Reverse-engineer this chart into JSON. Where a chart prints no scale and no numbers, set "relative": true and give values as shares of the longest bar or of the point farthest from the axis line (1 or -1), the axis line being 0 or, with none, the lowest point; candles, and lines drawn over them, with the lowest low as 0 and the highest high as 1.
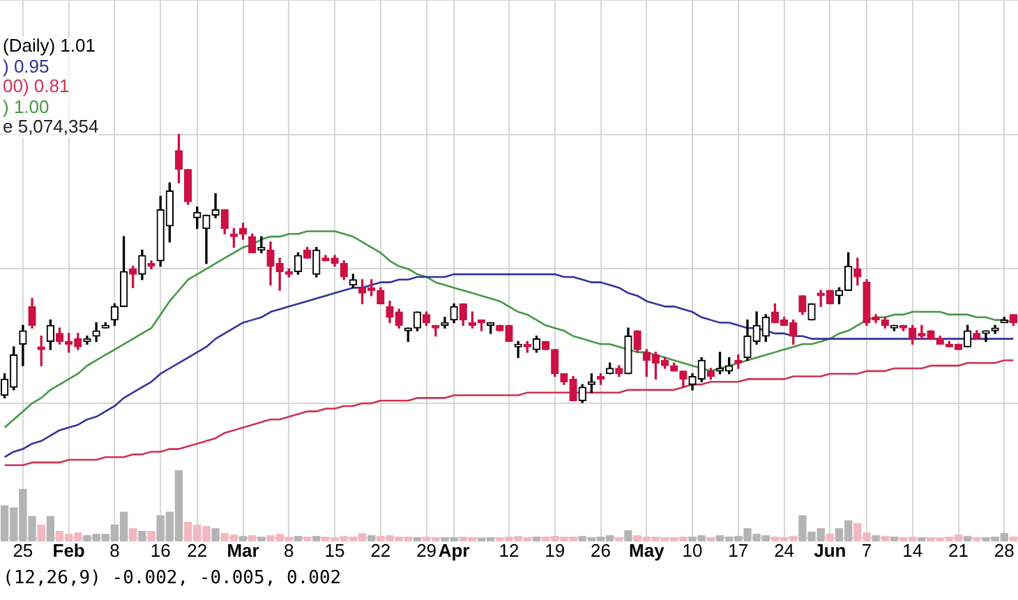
{
  "chart_data": [
    {
      "type": "candlestick",
      "title": "(Daily) 1.01",
      "relative": true,
      "grid": true,
      "legend": "top left",
      "categories": [
        null,
        null,
        "25",
        null,
        null,
        null,
        null,
        "Feb",
        null,
        null,
        null,
        null,
        "8",
        null,
        null,
        null,
        null,
        "16",
        null,
        null,
        null,
        "22",
        null,
        null,
        null,
        null,
        "Mar",
        null,
        null,
        null,
        null,
        "8",
        null,
        null,
        null,
        null,
        "15",
        null,
        null,
        null,
        null,
        "22",
        null,
        null,
        null,
        null,
        "29",
        null,
        null,
        "Apr",
        null,
        null,
        null,
        null,
        null,
        "12",
        null,
        null,
        null,
        null,
        "19",
        null,
        null,
        null,
        null,
        "26",
        null,
        null,
        null,
        null,
        "May",
        null,
        null,
        null,
        null,
        "10",
        null,
        null,
        null,
        null,
        "17",
        null,
        null,
        null,
        null,
        "24",
        null,
        null,
        null,
        null,
        "Jun",
        null,
        null,
        null,
        "7",
        null,
        null,
        null,
        null,
        "14",
        null,
        null,
        null,
        null,
        "21",
        null,
        null,
        null,
        null,
        "28",
        null
      ],
      "ohlc": [
        [
          0.03,
          0.11,
          0.02,
          0.09
        ],
        [
          0.06,
          0.21,
          0.05,
          0.18
        ],
        [
          0.22,
          0.29,
          0.14,
          0.27
        ],
        [
          0.36,
          0.39,
          0.28,
          0.29
        ],
        [
          0.21,
          0.25,
          0.14,
          0.2
        ],
        [
          0.23,
          0.31,
          0.2,
          0.29
        ],
        [
          0.26,
          0.28,
          0.22,
          0.23
        ],
        [
          0.23,
          0.26,
          0.19,
          0.22
        ],
        [
          0.24,
          0.26,
          0.2,
          0.21
        ],
        [
          0.23,
          0.25,
          0.22,
          0.24
        ],
        [
          0.25,
          0.3,
          0.23,
          0.27
        ],
        [
          0.28,
          0.3,
          0.28,
          0.29
        ],
        [
          0.31,
          0.37,
          0.29,
          0.36
        ],
        [
          0.36,
          0.62,
          0.36,
          0.49
        ],
        [
          0.5,
          0.51,
          0.43,
          0.48
        ],
        [
          0.48,
          0.57,
          0.46,
          0.55
        ],
        [
          0.52,
          0.53,
          0.5,
          0.51
        ],
        [
          0.53,
          0.77,
          0.51,
          0.72
        ],
        [
          0.66,
          0.82,
          0.6,
          0.79
        ],
        [
          0.94,
          1,
          0.82,
          0.87
        ],
        [
          0.87,
          0.87,
          0.74,
          0.75
        ],
        [
          0.69,
          0.73,
          0.65,
          0.71
        ],
        [
          0.65,
          0.7,
          0.52,
          0.7
        ],
        [
          0.7,
          0.78,
          0.69,
          0.72
        ],
        [
          0.72,
          0.72,
          0.63,
          0.65
        ],
        [
          0.63,
          0.65,
          0.58,
          0.62
        ],
        [
          0.65,
          0.67,
          0.61,
          0.63
        ],
        [
          0.62,
          0.63,
          0.56,
          0.56
        ],
        [
          0.57,
          0.62,
          0.56,
          0.58
        ],
        [
          0.57,
          0.6,
          0.44,
          0.51
        ],
        [
          0.52,
          0.54,
          0.42,
          0.49
        ],
        [
          0.49,
          0.5,
          0.47,
          0.48
        ],
        [
          0.49,
          0.56,
          0.48,
          0.55
        ],
        [
          0.57,
          0.58,
          0.54,
          0.54
        ],
        [
          0.48,
          0.58,
          0.47,
          0.57
        ],
        [
          0.54,
          0.55,
          0.53,
          0.53
        ],
        [
          0.54,
          0.55,
          0.51,
          0.52
        ],
        [
          0.52,
          0.53,
          0.46,
          0.47
        ],
        [
          0.44,
          0.48,
          0.43,
          0.46
        ],
        [
          0.43,
          0.46,
          0.37,
          0.41
        ],
        [
          0.43,
          0.46,
          0.4,
          0.42
        ],
        [
          0.42,
          0.43,
          0.37,
          0.37
        ],
        [
          0.36,
          0.38,
          0.3,
          0.32
        ],
        [
          0.34,
          0.35,
          0.28,
          0.29
        ],
        [
          0.27,
          0.28,
          0.23,
          0.28
        ],
        [
          0.28,
          0.34,
          0.27,
          0.34
        ],
        [
          0.33,
          0.34,
          0.29,
          0.3
        ],
        [
          0.29,
          0.29,
          0.25,
          0.28
        ],
        [
          0.29,
          0.32,
          0.28,
          0.3
        ],
        [
          0.31,
          0.37,
          0.3,
          0.36
        ],
        [
          0.37,
          0.37,
          0.29,
          0.31
        ],
        [
          0.3,
          0.34,
          0.28,
          0.29
        ],
        [
          0.31,
          0.31,
          0.27,
          0.3
        ],
        [
          0.29,
          0.3,
          0.26,
          0.3
        ],
        [
          0.29,
          0.29,
          0.27,
          0.27
        ],
        [
          0.29,
          0.29,
          0.23,
          0.23
        ],
        [
          0.21,
          0.23,
          0.17,
          0.22
        ],
        [
          0.22,
          0.23,
          0.19,
          0.21
        ],
        [
          0.2,
          0.25,
          0.19,
          0.24
        ],
        [
          0.23,
          0.23,
          0.2,
          0.2
        ],
        [
          0.2,
          0.2,
          0.1,
          0.11
        ],
        [
          0.11,
          0.11,
          0.07,
          0.08
        ],
        [
          0.09,
          0.1,
          0.01,
          0.01
        ],
        [
          0.01,
          0.07,
          0,
          0.06
        ],
        [
          0.07,
          0.11,
          0.04,
          0.08
        ],
        [
          0.1,
          0.11,
          0.07,
          0.09
        ],
        [
          0.11,
          0.15,
          0.11,
          0.13
        ],
        [
          0.13,
          0.14,
          0.1,
          0.11
        ],
        [
          0.11,
          0.28,
          0.11,
          0.25
        ],
        [
          0.27,
          0.27,
          0.19,
          0.2
        ],
        [
          0.19,
          0.2,
          0.1,
          0.16
        ],
        [
          0.18,
          0.19,
          0.09,
          0.15
        ],
        [
          0.16,
          0.17,
          0.13,
          0.14
        ],
        [
          0.14,
          0.15,
          0.12,
          0.12
        ],
        [
          0.12,
          0.12,
          0.06,
          0.09
        ],
        [
          0.07,
          0.11,
          0.05,
          0.1
        ],
        [
          0.09,
          0.17,
          0.08,
          0.16
        ],
        [
          0.12,
          0.13,
          0.09,
          0.1
        ],
        [
          0.12,
          0.19,
          0.11,
          0.13
        ],
        [
          0.12,
          0.17,
          0.11,
          0.14
        ],
        [
          0.16,
          0.18,
          0.13,
          0.15
        ],
        [
          0.17,
          0.31,
          0.16,
          0.25
        ],
        [
          0.23,
          0.34,
          0.22,
          0.29
        ],
        [
          0.25,
          0.33,
          0.23,
          0.32
        ],
        [
          0.34,
          0.37,
          0.3,
          0.3
        ],
        [
          0.31,
          0.32,
          0.29,
          0.29
        ],
        [
          0.3,
          0.31,
          0.22,
          0.25
        ],
        [
          0.4,
          0.4,
          0.33,
          0.34
        ],
        [
          0.31,
          0.37,
          0.31,
          0.37
        ],
        [
          0.41,
          0.42,
          0.36,
          0.4
        ],
        [
          0.42,
          0.42,
          0.37,
          0.37
        ],
        [
          0.4,
          0.43,
          0.37,
          0.42
        ],
        [
          0.42,
          0.56,
          0.42,
          0.51
        ],
        [
          0.5,
          0.54,
          0.44,
          0.47
        ],
        [
          0.45,
          0.46,
          0.29,
          0.3
        ],
        [
          0.32,
          0.33,
          0.3,
          0.31
        ],
        [
          0.31,
          0.32,
          0.28,
          0.29
        ],
        [
          0.28,
          0.29,
          0.27,
          0.29
        ],
        [
          0.29,
          0.29,
          0.27,
          0.28
        ],
        [
          0.28,
          0.29,
          0.22,
          0.24
        ],
        [
          0.26,
          0.29,
          0.24,
          0.25
        ],
        [
          0.27,
          0.27,
          0.24,
          0.24
        ],
        [
          0.24,
          0.25,
          0.22,
          0.22
        ],
        [
          0.22,
          0.23,
          0.21,
          0.21
        ],
        [
          0.22,
          0.22,
          0.2,
          0.2
        ],
        [
          0.21,
          0.29,
          0.21,
          0.27
        ],
        [
          0.26,
          0.27,
          0.24,
          0.24
        ],
        [
          0.26,
          0.27,
          0.23,
          0.27
        ],
        [
          0.27,
          0.29,
          0.26,
          0.28
        ],
        [
          0.3,
          0.32,
          0.3,
          0.31
        ],
        [
          0.33,
          0.33,
          0.29,
          0.3
        ]
      ],
      "series": [
        {
          "type": "line",
          "name": ") 0.95",
          "color": "#33339a",
          "values": [
            -0.2,
            -0.18,
            -0.17,
            -0.15,
            -0.14,
            -0.12,
            -0.1,
            -0.09,
            -0.08,
            -0.06,
            -0.05,
            -0.03,
            -0.01,
            0.02,
            0.04,
            0.06,
            0.08,
            0.11,
            0.13,
            0.15,
            0.17,
            0.19,
            0.21,
            0.24,
            0.26,
            0.28,
            0.3,
            0.31,
            0.32,
            0.34,
            0.35,
            0.36,
            0.37,
            0.38,
            0.39,
            0.4,
            0.41,
            0.42,
            0.43,
            0.43,
            0.44,
            0.45,
            0.45,
            0.46,
            0.46,
            0.47,
            0.47,
            0.47,
            0.47,
            0.48,
            0.48,
            0.48,
            0.48,
            0.48,
            0.48,
            0.48,
            0.48,
            0.48,
            0.48,
            0.48,
            0.48,
            0.47,
            0.47,
            0.46,
            0.45,
            0.45,
            0.44,
            0.43,
            0.41,
            0.4,
            0.38,
            0.37,
            0.36,
            0.36,
            0.35,
            0.34,
            0.32,
            0.31,
            0.3,
            0.3,
            0.29,
            0.28,
            0.28,
            0.27,
            0.26,
            0.26,
            0.25,
            0.25,
            0.24,
            0.24,
            0.24,
            0.24,
            0.24,
            0.24,
            0.24,
            0.24,
            0.24,
            0.24,
            0.24,
            0.24,
            0.24,
            0.24,
            0.24,
            0.24,
            0.24,
            0.24,
            0.24,
            0.24,
            0.24,
            0.24,
            0.24
          ]
        },
        {
          "type": "line",
          "name": "00) 0.81",
          "color": "#cc3355",
          "values": [
            -0.23,
            -0.23,
            -0.23,
            -0.22,
            -0.22,
            -0.22,
            -0.22,
            -0.21,
            -0.21,
            -0.21,
            -0.21,
            -0.2,
            -0.2,
            -0.2,
            -0.19,
            -0.19,
            -0.18,
            -0.18,
            -0.17,
            -0.17,
            -0.16,
            -0.15,
            -0.14,
            -0.13,
            -0.11,
            -0.1,
            -0.09,
            -0.08,
            -0.07,
            -0.06,
            -0.06,
            -0.05,
            -0.04,
            -0.03,
            -0.03,
            -0.02,
            -0.02,
            -0.01,
            -0.01,
            0,
            0,
            0.01,
            0.01,
            0.01,
            0.01,
            0.02,
            0.02,
            0.02,
            0.02,
            0.03,
            0.03,
            0.03,
            0.03,
            0.03,
            0.03,
            0.03,
            0.03,
            0.04,
            0.04,
            0.04,
            0.04,
            0.04,
            0.04,
            0.04,
            0.04,
            0.04,
            0.04,
            0.04,
            0.05,
            0.05,
            0.05,
            0.05,
            0.05,
            0.05,
            0.06,
            0.07,
            0.07,
            0.08,
            0.08,
            0.08,
            0.08,
            0.09,
            0.09,
            0.09,
            0.09,
            0.09,
            0.1,
            0.1,
            0.1,
            0.1,
            0.11,
            0.11,
            0.11,
            0.11,
            0.12,
            0.12,
            0.12,
            0.13,
            0.13,
            0.13,
            0.13,
            0.14,
            0.14,
            0.14,
            0.14,
            0.15,
            0.15,
            0.15,
            0.15,
            0.16,
            0.16
          ]
        },
        {
          "type": "line",
          "name": ") 1.00",
          "color": "#449944",
          "values": [
            -0.09,
            -0.06,
            -0.03,
            0,
            0.02,
            0.05,
            0.07,
            0.09,
            0.11,
            0.14,
            0.16,
            0.18,
            0.2,
            0.22,
            0.24,
            0.26,
            0.28,
            0.33,
            0.38,
            0.42,
            0.46,
            0.48,
            0.5,
            0.52,
            0.54,
            0.56,
            0.58,
            0.59,
            0.61,
            0.62,
            0.62,
            0.63,
            0.63,
            0.64,
            0.64,
            0.64,
            0.64,
            0.63,
            0.62,
            0.6,
            0.58,
            0.56,
            0.53,
            0.51,
            0.5,
            0.48,
            0.47,
            0.45,
            0.44,
            0.43,
            0.42,
            0.41,
            0.4,
            0.39,
            0.38,
            0.36,
            0.34,
            0.33,
            0.31,
            0.29,
            0.28,
            0.27,
            0.25,
            0.24,
            0.23,
            0.22,
            0.22,
            0.21,
            0.2,
            0.19,
            0.19,
            0.18,
            0.17,
            0.16,
            0.15,
            0.14,
            0.13,
            0.12,
            0.13,
            0.14,
            0.15,
            0.16,
            0.17,
            0.18,
            0.19,
            0.2,
            0.21,
            0.22,
            0.22,
            0.23,
            0.24,
            0.26,
            0.27,
            0.29,
            0.31,
            0.32,
            0.32,
            0.33,
            0.33,
            0.34,
            0.34,
            0.34,
            0.34,
            0.33,
            0.33,
            0.33,
            0.32,
            0.32,
            0.31,
            0.31,
            0.3
          ]
        }
      ],
      "annotations": [
        "(12,26,9) -0.002, -0.005, 0.002"
      ]
    },
    {
      "type": "bar",
      "relative": true,
      "legend": "top left",
      "categories": [
        null,
        null,
        null,
        null,
        null,
        null,
        null,
        null,
        null,
        null,
        null,
        null,
        null,
        null,
        null,
        null,
        null,
        null,
        null,
        null,
        null,
        null,
        null,
        null,
        null,
        null,
        null,
        null,
        null,
        null,
        null,
        null,
        null,
        null,
        null,
        null,
        null,
        null,
        null,
        null,
        null,
        null,
        null,
        null,
        null,
        null,
        null,
        null,
        null,
        null,
        null,
        null,
        null,
        null,
        null,
        null,
        null,
        null,
        null,
        null,
        null,
        null,
        null,
        null,
        null,
        null,
        null,
        null,
        null,
        null,
        null,
        null,
        null,
        null,
        null,
        null,
        null,
        null,
        null,
        null,
        null,
        null,
        null,
        null,
        null,
        null,
        null,
        null,
        null,
        null,
        null,
        null,
        null,
        null,
        null,
        null,
        null,
        null,
        null,
        null,
        null,
        null,
        null,
        null,
        null,
        null,
        null,
        null,
        null,
        null,
        null
      ],
      "series": [
        {
          "name": "e 5,074,354",
          "colors": [
            "#b4b4b4",
            "#b4b4b4",
            "#b4b4b4",
            "#b4b4b4",
            "#f2b8c0",
            "#b4b4b4",
            "#f2b8c0",
            "#f2b8c0",
            "#f2b8c0",
            "#b4b4b4",
            "#b4b4b4",
            "#b4b4b4",
            "#b4b4b4",
            "#b4b4b4",
            "#f2b8c0",
            "#b4b4b4",
            "#f2b8c0",
            "#b4b4b4",
            "#b4b4b4",
            "#b4b4b4",
            "#f2b8c0",
            "#f2b8c0",
            "#f2b8c0",
            "#b4b4b4",
            "#f2b8c0",
            "#f2b8c0",
            "#b4b4b4",
            "#f2b8c0",
            "#b4b4b4",
            "#f2b8c0",
            "#f2b8c0",
            "#f2b8c0",
            "#b4b4b4",
            "#f2b8c0",
            "#b4b4b4",
            "#f2b8c0",
            "#f2b8c0",
            "#f2b8c0",
            "#f2b8c0",
            "#f2b8c0",
            "#b4b4b4",
            "#f2b8c0",
            "#f2b8c0",
            "#f2b8c0",
            "#f2b8c0",
            "#b4b4b4",
            "#f2b8c0",
            "#f2b8c0",
            "#b4b4b4",
            "#b4b4b4",
            "#f2b8c0",
            "#f2b8c0",
            "#b4b4b4",
            "#b4b4b4",
            "#f2b8c0",
            "#f2b8c0",
            "#f2b8c0",
            "#f2b8c0",
            "#b4b4b4",
            "#f2b8c0",
            "#f2b8c0",
            "#f2b8c0",
            "#f2b8c0",
            "#b4b4b4",
            "#b4b4b4",
            "#b4b4b4",
            "#b4b4b4",
            "#f2b8c0",
            "#b4b4b4",
            "#f2b8c0",
            "#f2b8c0",
            "#f2b8c0",
            "#f2b8c0",
            "#f2b8c0",
            "#f2b8c0",
            "#b4b4b4",
            "#b4b4b4",
            "#f2b8c0",
            "#b4b4b4",
            "#b4b4b4",
            "#b4b4b4",
            "#b4b4b4",
            "#b4b4b4",
            "#b4b4b4",
            "#f2b8c0",
            "#f2b8c0",
            "#f2b8c0",
            "#b4b4b4",
            "#b4b4b4",
            "#b4b4b4",
            "#f2b8c0",
            "#b4b4b4",
            "#b4b4b4",
            "#f2b8c0",
            "#f2b8c0",
            "#b4b4b4",
            "#f2b8c0",
            "#b4b4b4",
            "#f2b8c0",
            "#f2b8c0",
            "#b4b4b4",
            "#f2b8c0",
            "#f2b8c0",
            "#f2b8c0",
            "#f2b8c0",
            "#b4b4b4",
            "#f2b8c0",
            "#b4b4b4",
            "#b4b4b4",
            "#b4b4b4",
            "#f2b8c0"
          ],
          "values": [
            0.5,
            0.47,
            0.73,
            0.35,
            0.23,
            0.35,
            0.14,
            0.1,
            0.12,
            0.08,
            0.1,
            0.1,
            0.23,
            0.41,
            0.18,
            0.14,
            0.14,
            0.36,
            0.41,
            1,
            0.27,
            0.23,
            0.21,
            0.18,
            0.11,
            0.09,
            0.07,
            0.08,
            0.06,
            0.08,
            0.1,
            0.06,
            0.07,
            0.06,
            0.07,
            0.06,
            0.05,
            0.07,
            0.06,
            0.11,
            0.08,
            0.07,
            0.08,
            0.06,
            0.06,
            0.05,
            0.06,
            0.05,
            0.05,
            0.05,
            0.06,
            0.05,
            0.04,
            0.05,
            0.05,
            0.06,
            0.07,
            0.05,
            0.06,
            0.06,
            0.07,
            0.06,
            0.06,
            0.07,
            0.05,
            0.06,
            0.08,
            0.05,
            0.15,
            0.08,
            0.06,
            0.06,
            0.05,
            0.05,
            0.06,
            0.06,
            0.08,
            0.05,
            0.08,
            0.06,
            0.07,
            0.18,
            0.1,
            0.08,
            0.06,
            0.05,
            0.07,
            0.36,
            0.13,
            0.18,
            0.1,
            0.18,
            0.29,
            0.25,
            0.12,
            0.08,
            0.07,
            0.06,
            0.05,
            0.06,
            0.05,
            0.05,
            0.04,
            0.06,
            0.09,
            0.07,
            0.05,
            0.05,
            0.06,
            0.11,
            0.06
          ]
        }
      ]
    }
  ]
}
